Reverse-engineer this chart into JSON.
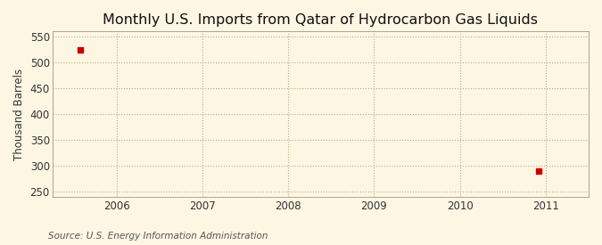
{
  "title": "Monthly U.S. Imports from Qatar of Hydrocarbon Gas Liquids",
  "ylabel": "Thousand Barrels",
  "source": "Source: U.S. Energy Information Administration",
  "background_color": "#fdf6e3",
  "plot_background_color": "#fdf6e3",
  "data_points_x": [
    2005.58,
    2010.92
  ],
  "data_points_y": [
    525,
    290
  ],
  "marker_color": "#cc0000",
  "marker_size": 4,
  "xlim": [
    2005.25,
    2011.5
  ],
  "ylim": [
    240,
    560
  ],
  "yticks": [
    250,
    300,
    350,
    400,
    450,
    500,
    550
  ],
  "xticks": [
    2006,
    2007,
    2008,
    2009,
    2010,
    2011
  ],
  "xtick_labels": [
    "2006",
    "2007",
    "2008",
    "2009",
    "2010",
    "2011"
  ],
  "grid_color": "#bbaa88",
  "grid_linestyle": ":",
  "grid_linewidth": 0.8,
  "title_fontsize": 11.5,
  "axis_fontsize": 8.5,
  "tick_fontsize": 8.5,
  "source_fontsize": 7.5
}
